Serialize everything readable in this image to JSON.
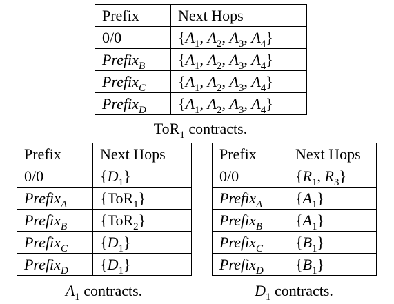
{
  "tor1_table": {
    "header": [
      "Prefix",
      "Next Hops"
    ],
    "rows": [
      {
        "prefix": "0/0",
        "prefix_sub": "",
        "hops": [
          "A",
          "1",
          "A",
          "2",
          "A",
          "3",
          "A",
          "4"
        ]
      },
      {
        "prefix": "Prefix",
        "prefix_sub": "B",
        "hops": [
          "A",
          "1",
          "A",
          "2",
          "A",
          "3",
          "A",
          "4"
        ]
      },
      {
        "prefix": "Prefix",
        "prefix_sub": "C",
        "hops": [
          "A",
          "1",
          "A",
          "2",
          "A",
          "3",
          "A",
          "4"
        ]
      },
      {
        "prefix": "Prefix",
        "prefix_sub": "D",
        "hops": [
          "A",
          "1",
          "A",
          "2",
          "A",
          "3",
          "A",
          "4"
        ]
      }
    ],
    "caption": {
      "main": "ToR",
      "sub": "1",
      "rest": " contracts."
    }
  },
  "a1_table": {
    "header": [
      "Prefix",
      "Next Hops"
    ],
    "rows": [
      {
        "prefix": "0/0",
        "prefix_sub": "",
        "hops": [
          "D",
          "1"
        ]
      },
      {
        "prefix": "Prefix",
        "prefix_sub": "A",
        "hops": [
          "ToR",
          "1"
        ]
      },
      {
        "prefix": "Prefix",
        "prefix_sub": "B",
        "hops": [
          "ToR",
          "2"
        ]
      },
      {
        "prefix": "Prefix",
        "prefix_sub": "C",
        "hops": [
          "D",
          "1"
        ]
      },
      {
        "prefix": "Prefix",
        "prefix_sub": "D",
        "hops": [
          "D",
          "1"
        ]
      }
    ],
    "caption": {
      "main": "A",
      "sub": "1",
      "rest": " contracts."
    }
  },
  "d1_table": {
    "header": [
      "Prefix",
      "Next Hops"
    ],
    "rows": [
      {
        "prefix": "0/0",
        "prefix_sub": "",
        "hops": [
          "R",
          "1",
          "R",
          "3"
        ]
      },
      {
        "prefix": "Prefix",
        "prefix_sub": "A",
        "hops": [
          "A",
          "1"
        ]
      },
      {
        "prefix": "Prefix",
        "prefix_sub": "B",
        "hops": [
          "A",
          "1"
        ]
      },
      {
        "prefix": "Prefix",
        "prefix_sub": "C",
        "hops": [
          "B",
          "1"
        ]
      },
      {
        "prefix": "Prefix",
        "prefix_sub": "D",
        "hops": [
          "B",
          "1"
        ]
      }
    ],
    "caption": {
      "main": "D",
      "sub": "1",
      "rest": " contracts."
    }
  }
}
